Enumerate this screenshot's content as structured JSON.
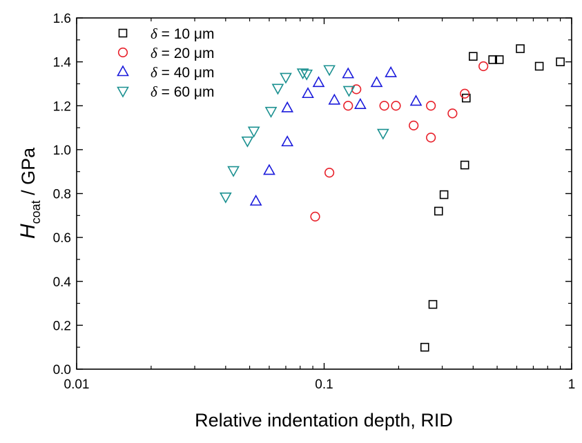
{
  "chart_data": {
    "type": "scatter",
    "xscale": "log",
    "xlim": [
      0.01,
      1
    ],
    "ylim": [
      0.0,
      1.6
    ],
    "xticks": [
      "0.01",
      "0.1",
      "1"
    ],
    "yticks": [
      "0.0",
      "0.2",
      "0.4",
      "0.6",
      "0.8",
      "1.0",
      "1.2",
      "1.4",
      "1.6"
    ],
    "xlabel": "Relative indentation depth, RID",
    "ylabel": {
      "symbol": "H",
      "subscript": "coat",
      "rest": " / GPa"
    },
    "legend_position": "top-left",
    "grid": false,
    "series": [
      {
        "name": "δ = 10 μm",
        "delta": "δ",
        "rest": " = 10 μm",
        "marker": "square",
        "color": "#000000",
        "points": [
          [
            0.255,
            0.1
          ],
          [
            0.275,
            0.295
          ],
          [
            0.29,
            0.72
          ],
          [
            0.305,
            0.795
          ],
          [
            0.37,
            0.93
          ],
          [
            0.375,
            1.235
          ],
          [
            0.4,
            1.425
          ],
          [
            0.48,
            1.41
          ],
          [
            0.51,
            1.41
          ],
          [
            0.62,
            1.46
          ],
          [
            0.74,
            1.38
          ],
          [
            0.9,
            1.4
          ]
        ]
      },
      {
        "name": "δ = 20 μm",
        "delta": "δ",
        "rest": " = 20 μm",
        "marker": "circle",
        "color": "#e8202a",
        "points": [
          [
            0.092,
            0.695
          ],
          [
            0.105,
            0.895
          ],
          [
            0.125,
            1.2
          ],
          [
            0.135,
            1.275
          ],
          [
            0.175,
            1.2
          ],
          [
            0.195,
            1.2
          ],
          [
            0.23,
            1.11
          ],
          [
            0.27,
            1.055
          ],
          [
            0.27,
            1.2
          ],
          [
            0.33,
            1.165
          ],
          [
            0.37,
            1.255
          ],
          [
            0.44,
            1.38
          ]
        ]
      },
      {
        "name": "δ = 40 μm",
        "delta": "δ",
        "rest": " = 40 μm",
        "marker": "triangle-up",
        "color": "#1a1adb",
        "points": [
          [
            0.053,
            0.765
          ],
          [
            0.06,
            0.905
          ],
          [
            0.071,
            1.035
          ],
          [
            0.071,
            1.19
          ],
          [
            0.086,
            1.255
          ],
          [
            0.095,
            1.305
          ],
          [
            0.11,
            1.225
          ],
          [
            0.125,
            1.345
          ],
          [
            0.14,
            1.205
          ],
          [
            0.163,
            1.305
          ],
          [
            0.186,
            1.35
          ],
          [
            0.235,
            1.22
          ]
        ]
      },
      {
        "name": "δ = 60 μm",
        "delta": "δ",
        "rest": " = 60 μm",
        "marker": "triangle-down",
        "color": "#1a9090",
        "points": [
          [
            0.04,
            0.785
          ],
          [
            0.043,
            0.905
          ],
          [
            0.049,
            1.04
          ],
          [
            0.052,
            1.085
          ],
          [
            0.061,
            1.175
          ],
          [
            0.065,
            1.28
          ],
          [
            0.07,
            1.33
          ],
          [
            0.082,
            1.35
          ],
          [
            0.085,
            1.345
          ],
          [
            0.105,
            1.365
          ],
          [
            0.126,
            1.27
          ],
          [
            0.173,
            1.075
          ]
        ]
      }
    ]
  }
}
